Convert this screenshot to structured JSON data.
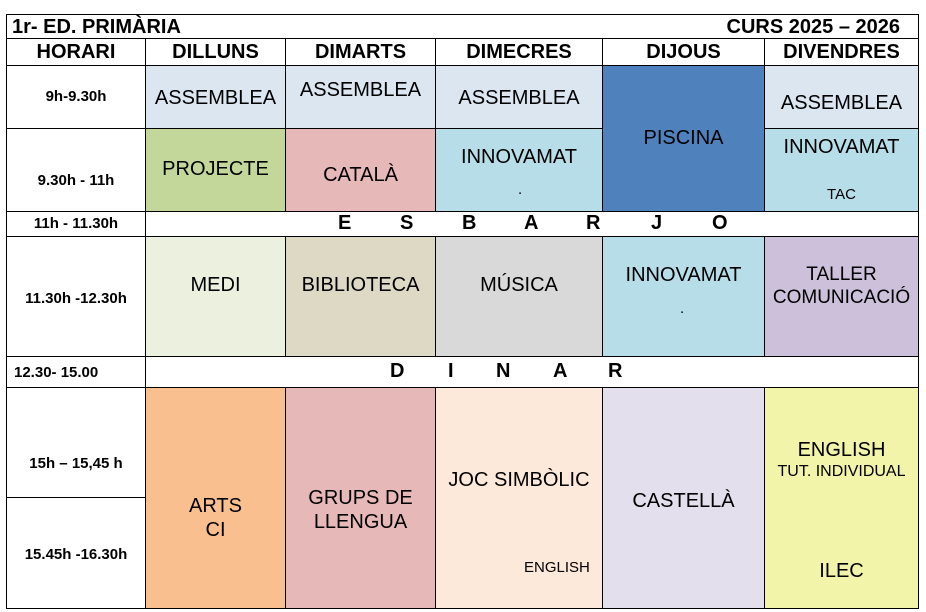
{
  "header": {
    "title": "1r- ED. PRIMÀRIA",
    "course": "CURS 2025 – 2026"
  },
  "columns": [
    "HORARI",
    "DILLUNS",
    "DIMARTS",
    "DIMECRES",
    "DIJOUS",
    "DIVENDRES"
  ],
  "times": {
    "t1": "9h-9.30h",
    "t2": "9.30h - 11h",
    "t3": "11h - 11.30h",
    "t4": "11.30h -12.30h",
    "t5": "12.30- 15.00",
    "t6": "15h – 15,45 h",
    "t7": "15.45h -16.30h"
  },
  "breaks": {
    "esbarjo": [
      "E",
      "S",
      "B",
      "A",
      "R",
      "J",
      "O"
    ],
    "dinar": [
      "D",
      "I",
      "N",
      "A",
      "R"
    ]
  },
  "cells": {
    "mon_1": "ASSEMBLEA",
    "tue_1": "ASSEMBLEA",
    "wed_1": "ASSEMBLEA",
    "thu_12": "PISCINA",
    "fri_1": "ASSEMBLEA",
    "mon_2": "PROJECTE",
    "tue_2": "CATALÀ",
    "wed_2": "INNOVAMAT",
    "wed_2_dot": ".",
    "fri_2": "INNOVAMAT",
    "fri_2_sub": "TAC",
    "mon_4": "MEDI",
    "tue_4": "BIBLIOTECA",
    "wed_4": "MÚSICA",
    "thu_4": "INNOVAMAT",
    "thu_4_dot": ".",
    "fri_4_a": "TALLER",
    "fri_4_b": "COMUNICACIÓ",
    "mon_6_a": "ARTS",
    "mon_6_b": "CI",
    "tue_6_a": "GRUPS DE",
    "tue_6_b": "LLENGUA",
    "wed_6": "JOC SIMBÒLIC",
    "wed_6_sub": "ENGLISH",
    "thu_6": "CASTELLÀ",
    "fri_6_a": "ENGLISH",
    "fri_6_b": "TUT. INDIVIDUAL",
    "fri_6_c": "ILEC"
  },
  "colors": {
    "assemblea": "#dce6f1",
    "projecte": "#c4d79b",
    "catala": "#e6b8b7",
    "innovamat": "#b7dee8",
    "piscina": "#4f81bd",
    "medi": "#ebf1de",
    "biblioteca": "#ddd9c4",
    "musica": "#d9d9d9",
    "taller": "#ccc0da",
    "arts": "#fabf8f",
    "grups": "#e6b8b7",
    "joc": "#fde9d9",
    "castella": "#e4dfec",
    "english": "#f2f5a9"
  }
}
